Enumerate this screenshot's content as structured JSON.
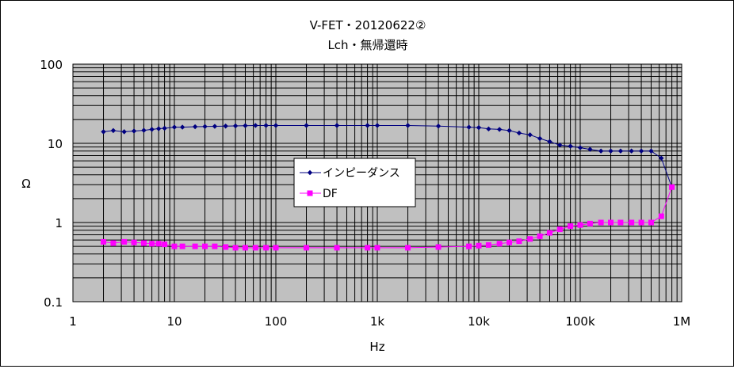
{
  "chart_data": {
    "type": "line",
    "title": "V-FET・20120622②",
    "subtitle": "Lch・無帰還時",
    "xlabel": "Hz",
    "ylabel": "Ω",
    "xscale": "log",
    "yscale": "log",
    "xlim": [
      1,
      1000000
    ],
    "ylim": [
      0.1,
      100
    ],
    "grid": true,
    "legend_position": "center",
    "plot_background": "#c0c0c0",
    "x_ticks": [
      {
        "value": 1,
        "label": "1"
      },
      {
        "value": 10,
        "label": "10"
      },
      {
        "value": 100,
        "label": "100"
      },
      {
        "value": 1000,
        "label": "1k"
      },
      {
        "value": 10000,
        "label": "10k"
      },
      {
        "value": 100000,
        "label": "100k"
      },
      {
        "value": 1000000,
        "label": "1M"
      }
    ],
    "y_ticks": [
      {
        "value": 0.1,
        "label": "0.1"
      },
      {
        "value": 1,
        "label": "1"
      },
      {
        "value": 10,
        "label": "10"
      },
      {
        "value": 100,
        "label": "100"
      }
    ],
    "series": [
      {
        "name": "インピーダンス",
        "color": "#000080",
        "marker": "diamond",
        "x": [
          2,
          2.5,
          3.2,
          4,
          5,
          6,
          7,
          8,
          10,
          12,
          16,
          20,
          25,
          32,
          40,
          50,
          63,
          80,
          100,
          200,
          400,
          800,
          1000,
          2000,
          4000,
          8000,
          10000,
          12500,
          16000,
          20000,
          25000,
          32000,
          40000,
          50000,
          63000,
          80000,
          100000,
          125000,
          160000,
          200000,
          250000,
          320000,
          400000,
          500000,
          630000,
          800000
        ],
        "values": [
          14,
          14.5,
          14,
          14.3,
          14.6,
          15,
          15.3,
          15.5,
          16,
          16,
          16.2,
          16.3,
          16.4,
          16.5,
          16.6,
          16.7,
          16.8,
          16.8,
          16.8,
          16.8,
          16.8,
          16.8,
          16.8,
          16.8,
          16.5,
          16,
          15.8,
          15.2,
          15,
          14.5,
          13.5,
          12.8,
          11.5,
          10.5,
          9.5,
          9.2,
          8.8,
          8.4,
          8,
          8,
          8,
          8,
          8,
          8,
          6.5,
          2.8
        ]
      },
      {
        "name": "DF",
        "color": "#ff00ff",
        "marker": "square",
        "x": [
          2,
          2.5,
          3.2,
          4,
          5,
          6,
          7,
          8,
          10,
          12,
          16,
          20,
          25,
          32,
          40,
          50,
          63,
          80,
          100,
          200,
          400,
          800,
          1000,
          2000,
          4000,
          8000,
          10000,
          12500,
          16000,
          20000,
          25000,
          32000,
          40000,
          50000,
          63000,
          80000,
          100000,
          125000,
          160000,
          200000,
          250000,
          320000,
          400000,
          500000,
          630000,
          800000
        ],
        "values": [
          0.57,
          0.55,
          0.57,
          0.56,
          0.55,
          0.54,
          0.54,
          0.53,
          0.5,
          0.5,
          0.5,
          0.5,
          0.5,
          0.49,
          0.48,
          0.48,
          0.48,
          0.48,
          0.48,
          0.48,
          0.48,
          0.48,
          0.48,
          0.48,
          0.49,
          0.5,
          0.51,
          0.52,
          0.54,
          0.56,
          0.58,
          0.62,
          0.67,
          0.74,
          0.82,
          0.9,
          0.93,
          0.97,
          1,
          1,
          1,
          1,
          1,
          1,
          1.2,
          2.8
        ]
      }
    ]
  }
}
